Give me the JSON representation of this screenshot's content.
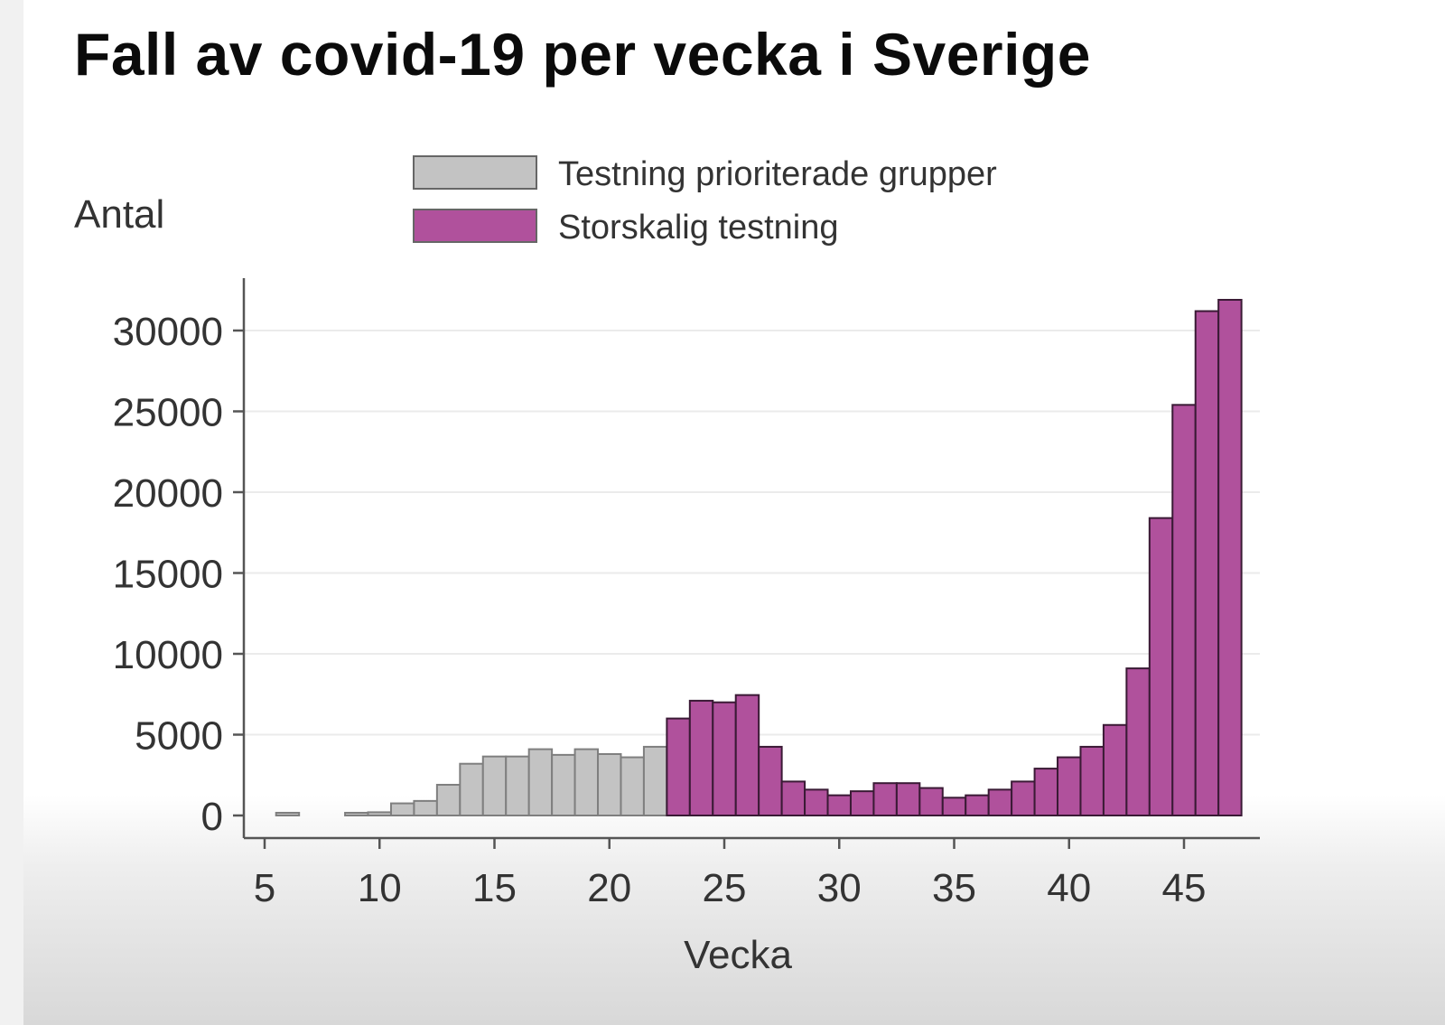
{
  "chart_data": {
    "type": "bar",
    "title": "Fall av covid-19 per vecka i Sverige",
    "xlabel": "Vecka",
    "ylabel": "Antal",
    "xlim": [
      4,
      48
    ],
    "ylim": [
      0,
      32000
    ],
    "xticks": [
      5,
      10,
      15,
      20,
      25,
      30,
      35,
      40,
      45
    ],
    "yticks": [
      0,
      5000,
      10000,
      15000,
      20000,
      25000,
      30000
    ],
    "grid": "horizontal",
    "legend_position": "top",
    "series": [
      {
        "name": "Testning prioriterade grupper",
        "color": "#c3c3c3",
        "x": [
          6,
          9,
          10,
          11,
          12,
          13,
          14,
          15,
          16,
          17,
          18,
          19,
          20,
          21,
          22
        ],
        "values": [
          50,
          50,
          200,
          750,
          900,
          1900,
          3200,
          3650,
          3650,
          4100,
          3750,
          4100,
          3800,
          3600,
          4250
        ]
      },
      {
        "name": "Storskalig testning",
        "color": "#b0519c",
        "x": [
          23,
          24,
          25,
          26,
          27,
          28,
          29,
          30,
          31,
          32,
          33,
          34,
          35,
          36,
          37,
          38,
          39,
          40,
          41,
          42,
          43,
          44,
          45,
          46,
          47
        ],
        "values": [
          6000,
          7100,
          7000,
          7450,
          4250,
          2100,
          1600,
          1250,
          1500,
          2000,
          2000,
          1700,
          1100,
          1250,
          1600,
          2100,
          2900,
          3600,
          4250,
          5600,
          9100,
          18400,
          25400,
          31200,
          31900
        ]
      }
    ]
  }
}
